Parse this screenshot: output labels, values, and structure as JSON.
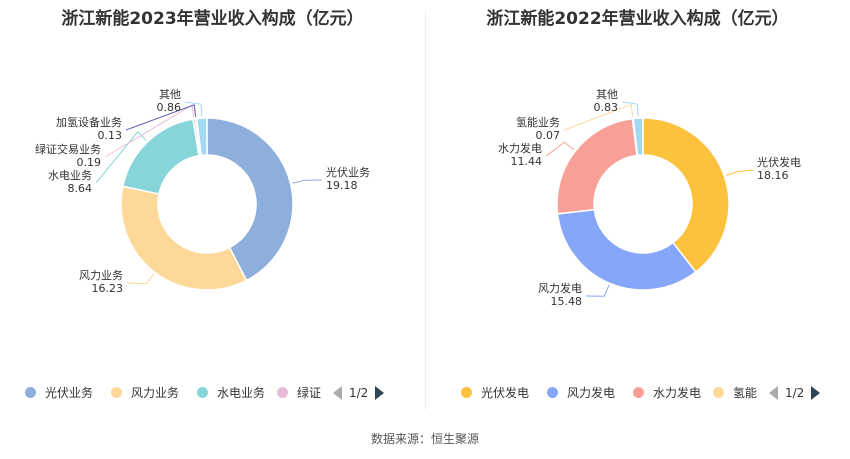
{
  "source_label": "数据来源：恒生聚源",
  "chart_data": [
    {
      "type": "pie",
      "title": "浙江新能2023年营业收入构成（亿元）",
      "slices": [
        {
          "name": "光伏业务",
          "value": 19.18,
          "label": "光伏业务",
          "value_text": "19.18",
          "color": "#8eafdb"
        },
        {
          "name": "风力业务",
          "value": 16.23,
          "label": "风力业务",
          "value_text": "16.23",
          "color": "#fdd898"
        },
        {
          "name": "水电业务",
          "value": 8.64,
          "label": "水电业务",
          "value_text": "8.64",
          "color": "#86d5d8"
        },
        {
          "name": "绿证交易业务",
          "value": 0.19,
          "label": "绿证交易业务",
          "value_text": "0.19",
          "color": "#e8bcd9"
        },
        {
          "name": "加氢设备业务",
          "value": 0.13,
          "label": "加氢设备业务",
          "value_text": "0.13",
          "color": "#5b5db0"
        },
        {
          "name": "其他",
          "value": 0.86,
          "label": "其他",
          "value_text": "0.86",
          "color": "#a3d9f2"
        }
      ],
      "legend": {
        "placement": "bottom",
        "items": [
          {
            "label": "光伏业务",
            "color": "#8eafdb"
          },
          {
            "label": "风力业务",
            "color": "#fdd898"
          },
          {
            "label": "水电业务",
            "color": "#86d5d8"
          },
          {
            "label": "绿证",
            "color": "#e8bcd9"
          }
        ],
        "page": "1/2"
      }
    },
    {
      "type": "pie",
      "title": "浙江新能2022年营业收入构成（亿元）",
      "slices": [
        {
          "name": "光伏发电",
          "value": 18.16,
          "label": "光伏发电",
          "value_text": "18.16",
          "color": "#fdc23d"
        },
        {
          "name": "风力发电",
          "value": 15.48,
          "label": "风力发电",
          "value_text": "15.48",
          "color": "#86a6f9"
        },
        {
          "name": "水力发电",
          "value": 11.44,
          "label": "水力发电",
          "value_text": "11.44",
          "color": "#f8a098"
        },
        {
          "name": "氢能业务",
          "value": 0.07,
          "label": "氢能业务",
          "value_text": "0.07",
          "color": "#fdd898"
        },
        {
          "name": "其他",
          "value": 0.83,
          "label": "其他",
          "value_text": "0.83",
          "color": "#a3d9f2"
        }
      ],
      "legend": {
        "placement": "bottom",
        "items": [
          {
            "label": "光伏发电",
            "color": "#fdc23d"
          },
          {
            "label": "风力发电",
            "color": "#86a6f9"
          },
          {
            "label": "水力发电",
            "color": "#f8a098"
          },
          {
            "label": "氢能",
            "color": "#fdd898"
          }
        ],
        "page": "1/2"
      }
    }
  ]
}
